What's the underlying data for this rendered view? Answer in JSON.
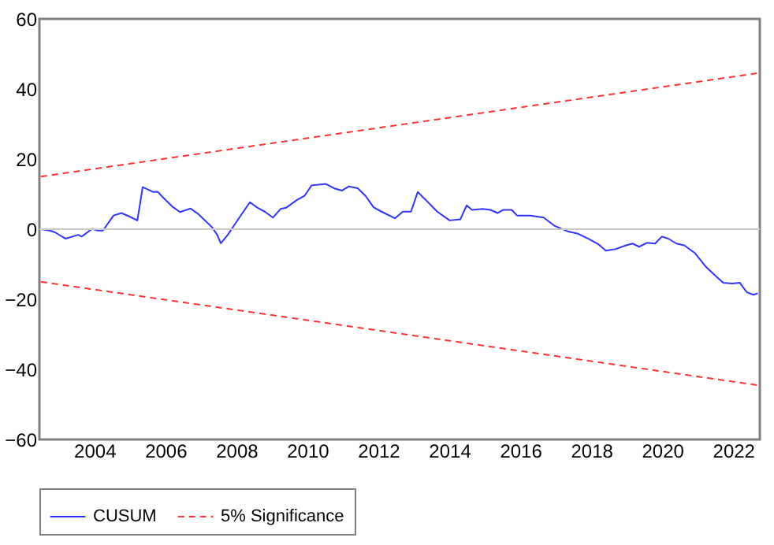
{
  "chart_data": {
    "type": "line",
    "xlim": [
      2002.45,
      2022.75
    ],
    "xticks": [
      2004,
      2006,
      2008,
      2010,
      2012,
      2014,
      2016,
      2018,
      2020,
      2022
    ],
    "ylim": [
      -60,
      60
    ],
    "yticks": [
      -60,
      -40,
      -20,
      0,
      20,
      40,
      60
    ],
    "grid": false,
    "legend": "bottom",
    "marker": "none",
    "ref_lines": [
      {
        "axis": "y",
        "value": 0,
        "color": "#c8c8c8"
      }
    ],
    "series": [
      {
        "name": "CUSUM",
        "color": "#3333ff",
        "line_style": "solid",
        "x": [
          2002.49,
          2002.74,
          2002.89,
          2003.19,
          2003.42,
          2003.54,
          2003.64,
          2003.94,
          2004.09,
          2004.24,
          2004.54,
          2004.76,
          2004.99,
          2005.21,
          2005.36,
          2005.51,
          2005.66,
          2005.78,
          2005.93,
          2006.19,
          2006.41,
          2006.71,
          2006.93,
          2007.31,
          2007.46,
          2007.56,
          2007.76,
          2008.05,
          2008.38,
          2008.58,
          2008.8,
          2009.03,
          2009.25,
          2009.4,
          2009.7,
          2009.92,
          2010.12,
          2010.52,
          2010.75,
          2010.97,
          2011.17,
          2011.42,
          2011.64,
          2011.87,
          2012.09,
          2012.47,
          2012.69,
          2012.92,
          2013.11,
          2013.37,
          2013.66,
          2014.01,
          2014.31,
          2014.49,
          2014.64,
          2014.94,
          2015.16,
          2015.36,
          2015.51,
          2015.76,
          2015.91,
          2016.28,
          2016.66,
          2016.96,
          2017.33,
          2017.63,
          2017.93,
          2018.2,
          2018.41,
          2018.68,
          2018.98,
          2019.16,
          2019.35,
          2019.57,
          2019.8,
          2019.99,
          2020.17,
          2020.4,
          2020.62,
          2020.92,
          2021.22,
          2021.49,
          2021.72,
          2021.97,
          2022.19,
          2022.27,
          2022.39,
          2022.57,
          2022.69
        ],
        "values": [
          0,
          -0.4,
          -0.9,
          -2.7,
          -2,
          -1.6,
          -2.1,
          0.1,
          -0.4,
          -0.4,
          3.9,
          4.6,
          3.6,
          2.5,
          12,
          11.3,
          10.6,
          10.7,
          9.1,
          6.5,
          4.9,
          5.9,
          4.3,
          0.6,
          -1.6,
          -4,
          -1.6,
          2.8,
          7.7,
          6.2,
          5,
          3.3,
          5.8,
          6.1,
          8.3,
          9.5,
          12.5,
          12.9,
          11.7,
          11,
          12.2,
          11.7,
          9.5,
          6.2,
          5,
          3.1,
          5,
          5,
          10.6,
          8,
          5,
          2.5,
          2.8,
          6.8,
          5.5,
          5.8,
          5.5,
          4.6,
          5.5,
          5.5,
          3.9,
          3.9,
          3.3,
          1,
          -0.6,
          -1.3,
          -2.8,
          -4.3,
          -6.1,
          -5.7,
          -4.6,
          -4.1,
          -5,
          -3.9,
          -4.1,
          -2.1,
          -2.7,
          -4.1,
          -4.6,
          -6.8,
          -10.6,
          -13.2,
          -15.3,
          -15.5,
          -15.3,
          -16.5,
          -18,
          -18.7,
          -18.3
        ]
      },
      {
        "name": "5% Significance",
        "color": "#ff3333",
        "line_style": "dashed",
        "x": [
          2002.49,
          2022.69
        ],
        "values": [
          15,
          44.5
        ]
      },
      {
        "color": "#ff3333",
        "line_style": "dashed",
        "x": [
          2002.49,
          2022.69
        ],
        "values": [
          -15,
          -44.5
        ]
      }
    ]
  }
}
